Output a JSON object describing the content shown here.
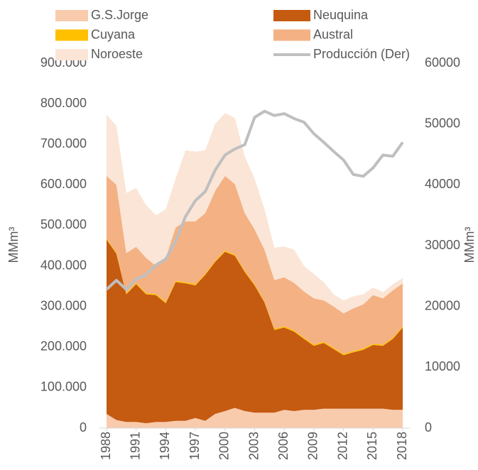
{
  "chart_data": {
    "type": "stacked-area-line",
    "x": [
      1988,
      1989,
      1990,
      1991,
      1992,
      1993,
      1994,
      1995,
      1996,
      1997,
      1998,
      1999,
      2000,
      2001,
      2002,
      2003,
      2004,
      2005,
      2006,
      2007,
      2008,
      2009,
      2010,
      2011,
      2012,
      2013,
      2014,
      2015,
      2016,
      2017,
      2018
    ],
    "xlim": [
      1988,
      2018
    ],
    "xticks": [
      1988,
      1991,
      1994,
      1997,
      2000,
      2003,
      2006,
      2009,
      2012,
      2015,
      2018
    ],
    "ylabel": "MMm³",
    "y2label": "MMm³",
    "ylim": [
      0,
      900000
    ],
    "yticks": [
      0,
      {
        "value": 100000,
        "label": "100.000"
      },
      {
        "value": 200000,
        "label": "200.000"
      },
      {
        "value": 300000,
        "label": "300.000"
      },
      {
        "value": 400000,
        "label": "400.000"
      },
      {
        "value": 500000,
        "label": "500.000"
      },
      {
        "value": 600000,
        "label": "600.000"
      },
      {
        "value": 700000,
        "label": "700.000"
      },
      {
        "value": 800000,
        "label": "800.000"
      },
      {
        "value": 900000,
        "label": "900.000"
      }
    ],
    "y2lim": [
      0,
      60000
    ],
    "y2ticks": [
      0,
      10000,
      20000,
      30000,
      40000,
      50000,
      60000
    ],
    "series": [
      {
        "name": "G.S.Jorge",
        "color": "#f8cbad",
        "values": [
          35000,
          20000,
          15000,
          15000,
          12000,
          15000,
          15000,
          18000,
          18000,
          25000,
          18000,
          35000,
          42000,
          50000,
          42000,
          38000,
          38000,
          38000,
          45000,
          42000,
          45000,
          45000,
          48000,
          48000,
          48000,
          48000,
          48000,
          48000,
          48000,
          45000,
          45000
        ]
      },
      {
        "name": "Neuquina",
        "color": "#c55a11",
        "values": [
          430000,
          410000,
          315000,
          340000,
          318000,
          313000,
          293000,
          342000,
          339000,
          327000,
          360000,
          375000,
          393000,
          375000,
          343000,
          314000,
          272000,
          204000,
          203000,
          196000,
          175000,
          158000,
          162000,
          147000,
          132000,
          139000,
          145000,
          157000,
          155000,
          175000,
          203000
        ]
      },
      {
        "name": "Cuyana",
        "color": "#ffc000",
        "values": [
          3000,
          3000,
          3000,
          3000,
          3000,
          3000,
          3000,
          3000,
          3000,
          3000,
          3000,
          3000,
          3000,
          3000,
          3000,
          3000,
          3000,
          3000,
          3000,
          3000,
          3000,
          3000,
          3000,
          3000,
          3000,
          3000,
          3000,
          3000,
          3000,
          3000,
          3000
        ]
      },
      {
        "name": "Austral",
        "color": "#f4b183",
        "values": [
          154000,
          167000,
          99000,
          89000,
          87000,
          69000,
          109000,
          132000,
          150000,
          155000,
          149000,
          172000,
          184000,
          174000,
          142000,
          135000,
          127000,
          120000,
          121000,
          117000,
          114000,
          114000,
          102000,
          102000,
          100000,
          105000,
          109000,
          120000,
          114000,
          117000,
          106000
        ]
      },
      {
        "name": "Noroeste",
        "color": "#fbe5d6",
        "values": [
          151000,
          145000,
          148000,
          145000,
          130000,
          125000,
          120000,
          120000,
          175000,
          172000,
          155000,
          165000,
          155000,
          163000,
          140000,
          125000,
          100000,
          80000,
          76000,
          82000,
          63000,
          60000,
          45000,
          30000,
          32000,
          30000,
          25000,
          19000,
          15000,
          15000,
          13000
        ]
      },
      {
        "name": "Producción (Der)",
        "color": "#bfbfbf",
        "axis": "y2",
        "values": [
          22800,
          24300,
          22800,
          24500,
          25200,
          26800,
          27800,
          30700,
          34800,
          37400,
          38900,
          42400,
          44900,
          45900,
          46600,
          51100,
          52100,
          51400,
          51700,
          50900,
          50300,
          48400,
          47000,
          45500,
          44100,
          41700,
          41400,
          42800,
          44900,
          44700,
          47000
        ]
      }
    ]
  }
}
